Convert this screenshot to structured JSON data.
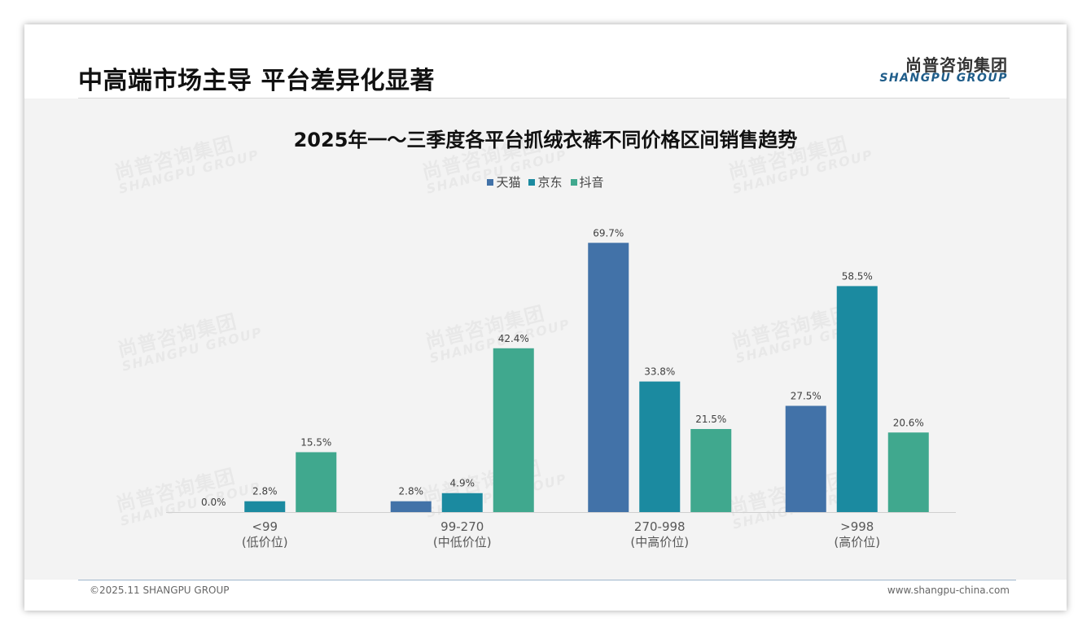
{
  "header": {
    "title": "中高端市场主导 平台差异化显著",
    "logo_cn": "尚普咨询集团",
    "logo_en": "SHANGPU GROUP"
  },
  "watermark": {
    "cn": "尚普咨询集团",
    "en": "SHANGPU GROUP"
  },
  "footer": {
    "copyright": "©2025.11 SHANGPU GROUP",
    "website": "www.shangpu-china.com"
  },
  "chart_data": {
    "type": "bar",
    "title": "2025年一～三季度各平台抓绒衣裤不同价格区间销售趋势",
    "categories": [
      "<99",
      "99-270",
      "270-998",
      ">998"
    ],
    "category_sublabels": [
      "(低价位)",
      "(中低价位)",
      "(中高价位)",
      "(高价位)"
    ],
    "series": [
      {
        "name": "天猫",
        "values": [
          0.0,
          2.8,
          69.7,
          27.5
        ],
        "labels": [
          "0.0%",
          "2.8%",
          "69.7%",
          "27.5%"
        ],
        "color": "#4272a8"
      },
      {
        "name": "京东",
        "values": [
          2.8,
          4.9,
          33.8,
          58.5
        ],
        "labels": [
          "2.8%",
          "4.9%",
          "33.8%",
          "58.5%"
        ],
        "color": "#1b8aa0"
      },
      {
        "name": "抖音",
        "values": [
          15.5,
          42.4,
          21.5,
          20.6
        ],
        "labels": [
          "15.5%",
          "42.4%",
          "21.5%",
          "20.6%"
        ],
        "color": "#40a88e"
      }
    ],
    "ylim": [
      0,
      100
    ],
    "unit": "%",
    "legend_position": "top-center",
    "grid": false
  }
}
